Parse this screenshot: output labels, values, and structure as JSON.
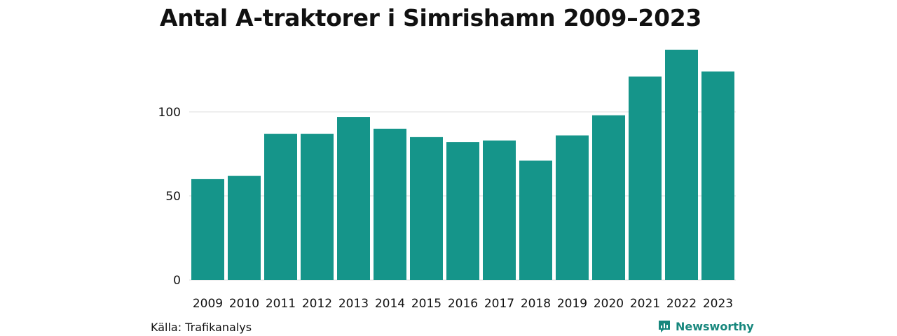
{
  "chart_data": {
    "type": "bar",
    "title": "Antal A-traktorer i Simrishamn 2009–2023",
    "xlabel": "",
    "ylabel": "",
    "categories": [
      "2009",
      "2010",
      "2011",
      "2012",
      "2013",
      "2014",
      "2015",
      "2016",
      "2017",
      "2018",
      "2019",
      "2020",
      "2021",
      "2022",
      "2023"
    ],
    "values": [
      60,
      62,
      87,
      87,
      97,
      90,
      85,
      82,
      83,
      71,
      86,
      98,
      121,
      137,
      124
    ],
    "ylim": [
      0,
      137
    ],
    "yticks": [
      0,
      50,
      100
    ],
    "grid": true,
    "bar_color": "#15958a",
    "grid_color": "#dedede"
  },
  "footer": {
    "source": "Källa: Trafikanalys",
    "brand": "Newsworthy",
    "brand_color": "#17877d"
  }
}
